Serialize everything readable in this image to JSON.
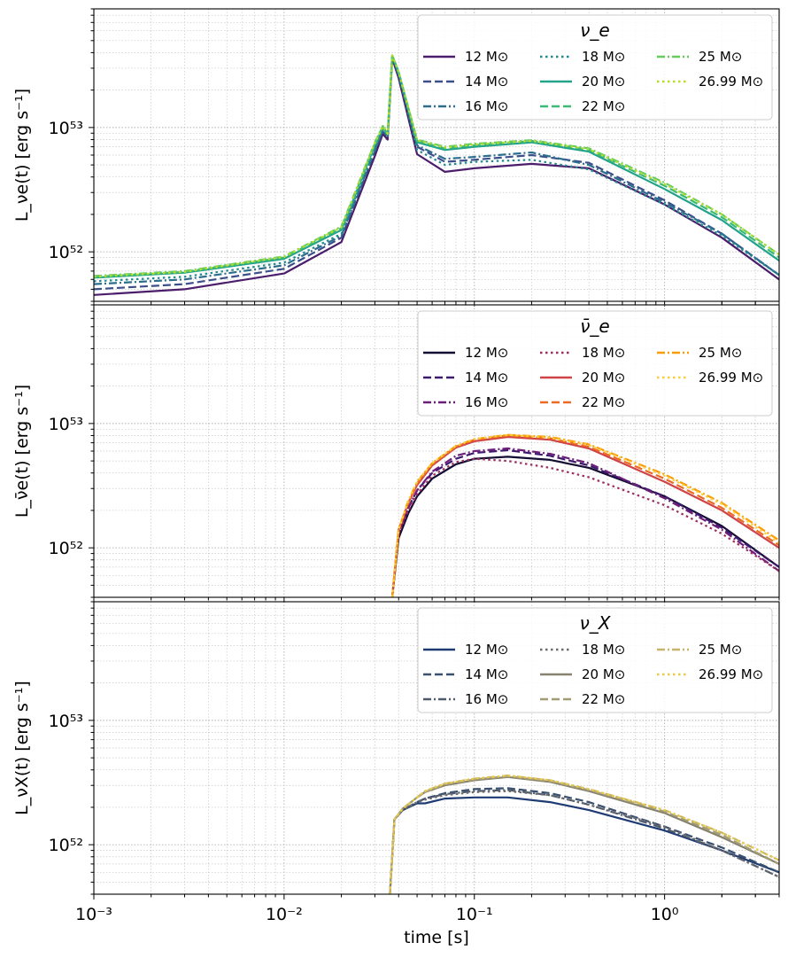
{
  "chart_data": [
    {
      "type": "line",
      "ylabel": "L_νe(t) [erg s⁻¹]",
      "xscale": "log",
      "yscale": "log",
      "xlim": [
        0.001,
        4.0
      ],
      "ylim": [
        4e+51,
        9e+53
      ],
      "grid": true,
      "legend_title": "ν_e",
      "legend_position": "top-right",
      "series": [
        {
          "name": "12 M⊙",
          "color": "#4b1d6b",
          "dash": "solid",
          "x": [
            0.001,
            0.003,
            0.01,
            0.02,
            0.03,
            0.033,
            0.035,
            0.037,
            0.04,
            0.05,
            0.07,
            0.1,
            0.2,
            0.4,
            1.0,
            2.0,
            4.0
          ],
          "y": [
            4.5e+51,
            5e+51,
            6.7e+51,
            1.2e+52,
            5.9e+52,
            8.9e+52,
            8e+52,
            3.6e+53,
            2.5e+53,
            6.1e+52,
            4.4e+52,
            4.7e+52,
            5.1e+52,
            4.7e+52,
            2.4e+52,
            1.3e+52,
            6e+51
          ]
        },
        {
          "name": "14 M⊙",
          "color": "#3b4f8a",
          "dash": "dash",
          "x": [
            0.001,
            0.003,
            0.01,
            0.02,
            0.03,
            0.033,
            0.035,
            0.037,
            0.04,
            0.05,
            0.07,
            0.1,
            0.2,
            0.4,
            1.0,
            2.0,
            4.0
          ],
          "y": [
            5e+51,
            5.5e+51,
            7.3e+51,
            1.3e+52,
            6.4e+52,
            9.3e+52,
            8.3e+52,
            3.7e+53,
            2.6e+53,
            7e+52,
            5.3e+52,
            5.5e+52,
            6e+52,
            5.2e+52,
            2.6e+52,
            1.4e+52,
            6.5e+51
          ]
        },
        {
          "name": "16 M⊙",
          "color": "#2c6e8e",
          "dash": "dashdot",
          "x": [
            0.001,
            0.003,
            0.01,
            0.02,
            0.03,
            0.033,
            0.035,
            0.037,
            0.04,
            0.05,
            0.07,
            0.1,
            0.2,
            0.4,
            1.0,
            2.0,
            4.0
          ],
          "y": [
            5.5e+51,
            6e+51,
            7.8e+51,
            1.35e+52,
            6.6e+52,
            9.5e+52,
            8.5e+52,
            3.7e+53,
            2.7e+53,
            7.2e+52,
            5.6e+52,
            5.8e+52,
            6.3e+52,
            5e+52,
            2.5e+52,
            1.4e+52,
            6.5e+51
          ]
        },
        {
          "name": "18 M⊙",
          "color": "#23898e",
          "dash": "dot",
          "x": [
            0.001,
            0.003,
            0.01,
            0.02,
            0.03,
            0.033,
            0.035,
            0.037,
            0.04,
            0.05,
            0.07,
            0.1,
            0.2,
            0.4,
            1.0,
            2.0,
            4.0
          ],
          "y": [
            5.8e+51,
            6.3e+51,
            8.2e+51,
            1.4e+52,
            6.8e+52,
            9.7e+52,
            8.6e+52,
            3.8e+53,
            2.7e+53,
            6.6e+52,
            5e+52,
            5.3e+52,
            5.5e+52,
            4.6e+52,
            2.4e+52,
            1.35e+52,
            6.5e+51
          ]
        },
        {
          "name": "20 M⊙",
          "color": "#22a38a",
          "dash": "solid",
          "x": [
            0.001,
            0.003,
            0.01,
            0.02,
            0.03,
            0.033,
            0.035,
            0.037,
            0.04,
            0.05,
            0.07,
            0.1,
            0.2,
            0.4,
            1.0,
            2.0,
            4.0
          ],
          "y": [
            6.2e+51,
            6.8e+51,
            8.8e+51,
            1.5e+52,
            7.2e+52,
            1e+53,
            8.8e+52,
            3.8e+53,
            2.8e+53,
            7.6e+52,
            6.6e+52,
            7e+52,
            7.6e+52,
            6.4e+52,
            3.2e+52,
            1.8e+52,
            8.5e+51
          ]
        },
        {
          "name": "22 M⊙",
          "color": "#3bba76",
          "dash": "dash",
          "x": [
            0.001,
            0.003,
            0.01,
            0.02,
            0.03,
            0.033,
            0.035,
            0.037,
            0.04,
            0.05,
            0.07,
            0.1,
            0.2,
            0.4,
            1.0,
            2.0,
            4.0
          ],
          "y": [
            6.3e+51,
            6.9e+51,
            9e+51,
            1.55e+52,
            7.4e+52,
            1.02e+53,
            8.9e+52,
            3.8e+53,
            2.8e+53,
            7.8e+52,
            6.8e+52,
            7.2e+52,
            7.8e+52,
            6.6e+52,
            3.4e+52,
            1.9e+52,
            9e+51
          ]
        },
        {
          "name": "25 M⊙",
          "color": "#66cb5d",
          "dash": "dashdot",
          "x": [
            0.001,
            0.003,
            0.01,
            0.02,
            0.03,
            0.033,
            0.035,
            0.037,
            0.04,
            0.05,
            0.07,
            0.1,
            0.2,
            0.4,
            1.0,
            2.0,
            4.0
          ],
          "y": [
            6.4e+51,
            7e+51,
            9.2e+51,
            1.6e+52,
            7.6e+52,
            1.03e+53,
            9e+52,
            3.8e+53,
            2.8e+53,
            8e+52,
            7e+52,
            7.4e+52,
            7.9e+52,
            6.8e+52,
            3.6e+52,
            2e+52,
            9.5e+51
          ]
        },
        {
          "name": "26.99 M⊙",
          "color": "#b6dd2a",
          "dash": "dot",
          "x": [
            0.001,
            0.003,
            0.01,
            0.02,
            0.03,
            0.033,
            0.035,
            0.037,
            0.04,
            0.05,
            0.07,
            0.1,
            0.2,
            0.4,
            1.0,
            2.0,
            4.0
          ],
          "y": [
            6.3e+51,
            6.9e+51,
            9.1e+51,
            1.58e+52,
            7.5e+52,
            1.02e+53,
            8.9e+52,
            3.8e+53,
            2.8e+53,
            7.9e+52,
            6.9e+52,
            7.3e+52,
            7.8e+52,
            6.7e+52,
            3.5e+52,
            2e+52,
            9.5e+51
          ]
        }
      ]
    },
    {
      "type": "line",
      "ylabel": "L_ν̄e(t) [erg s⁻¹]",
      "xscale": "log",
      "yscale": "log",
      "xlim": [
        0.001,
        4.0
      ],
      "ylim": [
        4e+51,
        9e+53
      ],
      "grid": true,
      "legend_title": "ν̄_e",
      "legend_position": "top-right",
      "series": [
        {
          "name": "12 M⊙",
          "color": "#120d31",
          "dash": "solid",
          "x": [
            0.037,
            0.04,
            0.045,
            0.05,
            0.06,
            0.08,
            0.1,
            0.15,
            0.25,
            0.4,
            1.0,
            2.0,
            4.0
          ],
          "y": [
            4e+51,
            1.2e+52,
            1.9e+52,
            2.6e+52,
            3.6e+52,
            4.7e+52,
            5.2e+52,
            5.4e+52,
            5.1e+52,
            4.4e+52,
            2.6e+52,
            1.5e+52,
            7e+51
          ]
        },
        {
          "name": "14 M⊙",
          "color": "#3e1a6e",
          "dash": "dash",
          "x": [
            0.037,
            0.04,
            0.045,
            0.05,
            0.06,
            0.08,
            0.1,
            0.15,
            0.25,
            0.4,
            1.0,
            2.0,
            4.0
          ],
          "y": [
            4e+51,
            1.3e+52,
            2.1e+52,
            2.9e+52,
            4e+52,
            5.2e+52,
            5.8e+52,
            6.1e+52,
            5.5e+52,
            4.6e+52,
            2.6e+52,
            1.45e+52,
            7e+51
          ]
        },
        {
          "name": "16 M⊙",
          "color": "#6d1e7a",
          "dash": "dashdot",
          "x": [
            0.037,
            0.04,
            0.045,
            0.05,
            0.06,
            0.08,
            0.1,
            0.15,
            0.25,
            0.4,
            1.0,
            2.0,
            4.0
          ],
          "y": [
            4e+51,
            1.3e+52,
            2.1e+52,
            2.9e+52,
            4.1e+52,
            5.5e+52,
            6e+52,
            6.3e+52,
            5.7e+52,
            4.8e+52,
            2.5e+52,
            1.4e+52,
            6.5e+51
          ]
        },
        {
          "name": "18 M⊙",
          "color": "#9c2e5f",
          "dash": "dot",
          "x": [
            0.037,
            0.04,
            0.045,
            0.05,
            0.06,
            0.08,
            0.1,
            0.15,
            0.25,
            0.4,
            1.0,
            2.0,
            4.0
          ],
          "y": [
            4e+51,
            1.3e+52,
            2e+52,
            2.7e+52,
            3.8e+52,
            4.9e+52,
            5.2e+52,
            5e+52,
            4.4e+52,
            3.7e+52,
            2.2e+52,
            1.3e+52,
            6.5e+51
          ]
        },
        {
          "name": "20 M⊙",
          "color": "#cf4446",
          "dash": "solid",
          "x": [
            0.037,
            0.04,
            0.045,
            0.05,
            0.06,
            0.08,
            0.1,
            0.15,
            0.25,
            0.4,
            1.0,
            2.0,
            4.0
          ],
          "y": [
            4e+51,
            1.4e+52,
            2.3e+52,
            3.2e+52,
            4.6e+52,
            6.4e+52,
            7.2e+52,
            7.8e+52,
            7.4e+52,
            6.3e+52,
            3.4e+52,
            2e+52,
            1e+52
          ]
        },
        {
          "name": "22 M⊙",
          "color": "#ed6925",
          "dash": "dash",
          "x": [
            0.037,
            0.04,
            0.045,
            0.05,
            0.06,
            0.08,
            0.1,
            0.15,
            0.25,
            0.4,
            1.0,
            2.0,
            4.0
          ],
          "y": [
            4e+51,
            1.4e+52,
            2.3e+52,
            3.3e+52,
            4.7e+52,
            6.5e+52,
            7.4e+52,
            8e+52,
            7.6e+52,
            6.5e+52,
            3.6e+52,
            2.1e+52,
            1.05e+52
          ]
        },
        {
          "name": "25 M⊙",
          "color": "#fb9b06",
          "dash": "dashdot",
          "x": [
            0.037,
            0.04,
            0.045,
            0.05,
            0.06,
            0.08,
            0.1,
            0.15,
            0.25,
            0.4,
            1.0,
            2.0,
            4.0
          ],
          "y": [
            4e+51,
            1.4e+52,
            2.4e+52,
            3.4e+52,
            4.8e+52,
            6.6e+52,
            7.5e+52,
            8.1e+52,
            7.8e+52,
            6.8e+52,
            3.9e+52,
            2.3e+52,
            1.15e+52
          ]
        },
        {
          "name": "26.99 M⊙",
          "color": "#f7d13d",
          "dash": "dot",
          "x": [
            0.037,
            0.04,
            0.045,
            0.05,
            0.06,
            0.08,
            0.1,
            0.15,
            0.25,
            0.4,
            1.0,
            2.0,
            4.0
          ],
          "y": [
            4e+51,
            1.4e+52,
            2.4e+52,
            3.4e+52,
            4.8e+52,
            6.6e+52,
            7.5e+52,
            8.1e+52,
            7.7e+52,
            6.7e+52,
            3.8e+52,
            2.25e+52,
            1.1e+52
          ]
        }
      ]
    },
    {
      "type": "line",
      "ylabel": "L_νX(t) [erg s⁻¹]",
      "xlabel": "time [s]",
      "xscale": "log",
      "yscale": "log",
      "xlim": [
        0.001,
        4.0
      ],
      "ylim": [
        4e+51,
        9e+53
      ],
      "xticks": [
        "10⁻³",
        "10⁻²",
        "10⁻¹",
        "10⁰"
      ],
      "grid": true,
      "legend_title": "ν_X",
      "legend_position": "top-right",
      "series": [
        {
          "name": "12 M⊙",
          "color": "#1f3b73",
          "dash": "solid",
          "x": [
            0.036,
            0.038,
            0.042,
            0.05,
            0.055,
            0.07,
            0.1,
            0.15,
            0.25,
            0.4,
            1.0,
            2.0,
            4.0
          ],
          "y": [
            4e+51,
            1.6e+52,
            1.9e+52,
            2.15e+52,
            2.15e+52,
            2.35e+52,
            2.4e+52,
            2.4e+52,
            2.2e+52,
            1.9e+52,
            1.3e+52,
            9e+51,
            6e+51
          ]
        },
        {
          "name": "14 M⊙",
          "color": "#39506e",
          "dash": "dash",
          "x": [
            0.036,
            0.038,
            0.042,
            0.05,
            0.055,
            0.07,
            0.1,
            0.15,
            0.25,
            0.4,
            1.0,
            2.0,
            4.0
          ],
          "y": [
            4e+51,
            1.6e+52,
            1.9e+52,
            2.2e+52,
            2.35e+52,
            2.6e+52,
            2.8e+52,
            2.85e+52,
            2.6e+52,
            2.2e+52,
            1.4e+52,
            9.5e+51,
            6e+51
          ]
        },
        {
          "name": "16 M⊙",
          "color": "#4f5a6b",
          "dash": "dashdot",
          "x": [
            0.036,
            0.038,
            0.042,
            0.05,
            0.055,
            0.07,
            0.1,
            0.15,
            0.25,
            0.4,
            1.0,
            2.0,
            4.0
          ],
          "y": [
            4e+51,
            1.6e+52,
            1.9e+52,
            2.2e+52,
            2.35e+52,
            2.55e+52,
            2.7e+52,
            2.75e+52,
            2.5e+52,
            2.1e+52,
            1.35e+52,
            9e+51,
            5.5e+51
          ]
        },
        {
          "name": "18 M⊙",
          "color": "#6b6b6f",
          "dash": "dot",
          "x": [
            0.036,
            0.038,
            0.042,
            0.05,
            0.055,
            0.07,
            0.1,
            0.15,
            0.25,
            0.4,
            1.0,
            2.0,
            4.0
          ],
          "y": [
            4e+51,
            1.6e+52,
            1.9e+52,
            2.2e+52,
            2.3e+52,
            2.5e+52,
            2.65e+52,
            2.7e+52,
            2.5e+52,
            2.1e+52,
            1.4e+52,
            9e+51,
            5.5e+51
          ]
        },
        {
          "name": "20 M⊙",
          "color": "#86826f",
          "dash": "solid",
          "x": [
            0.036,
            0.038,
            0.042,
            0.05,
            0.055,
            0.07,
            0.1,
            0.15,
            0.25,
            0.4,
            1.0,
            2.0,
            4.0
          ],
          "y": [
            4e+51,
            1.6e+52,
            1.95e+52,
            2.4e+52,
            2.65e+52,
            3e+52,
            3.3e+52,
            3.5e+52,
            3.2e+52,
            2.7e+52,
            1.8e+52,
            1.15e+52,
            7e+51
          ]
        },
        {
          "name": "22 M⊙",
          "color": "#a39d75",
          "dash": "dash",
          "x": [
            0.036,
            0.038,
            0.042,
            0.05,
            0.055,
            0.07,
            0.1,
            0.15,
            0.25,
            0.4,
            1.0,
            2.0,
            4.0
          ],
          "y": [
            4e+51,
            1.6e+52,
            1.95e+52,
            2.4e+52,
            2.65e+52,
            3.05e+52,
            3.35e+52,
            3.55e+52,
            3.25e+52,
            2.75e+52,
            1.85e+52,
            1.2e+52,
            7e+51
          ]
        },
        {
          "name": "25 M⊙",
          "color": "#c8b36b",
          "dash": "dashdot",
          "x": [
            0.036,
            0.038,
            0.042,
            0.05,
            0.055,
            0.07,
            0.1,
            0.15,
            0.25,
            0.4,
            1.0,
            2.0,
            4.0
          ],
          "y": [
            4e+51,
            1.6e+52,
            1.95e+52,
            2.4e+52,
            2.7e+52,
            3.1e+52,
            3.4e+52,
            3.6e+52,
            3.3e+52,
            2.8e+52,
            1.9e+52,
            1.25e+52,
            7.5e+51
          ]
        },
        {
          "name": "26.99 M⊙",
          "color": "#e8cc45",
          "dash": "dot",
          "x": [
            0.036,
            0.038,
            0.042,
            0.05,
            0.055,
            0.07,
            0.1,
            0.15,
            0.25,
            0.4,
            1.0,
            2.0,
            4.0
          ],
          "y": [
            4e+51,
            1.6e+52,
            1.95e+52,
            2.4e+52,
            2.7e+52,
            3.1e+52,
            3.4e+52,
            3.6e+52,
            3.3e+52,
            2.8e+52,
            1.9e+52,
            1.25e+52,
            7.5e+51
          ]
        }
      ]
    }
  ],
  "yticks": [
    "10⁵²",
    "10⁵³"
  ]
}
